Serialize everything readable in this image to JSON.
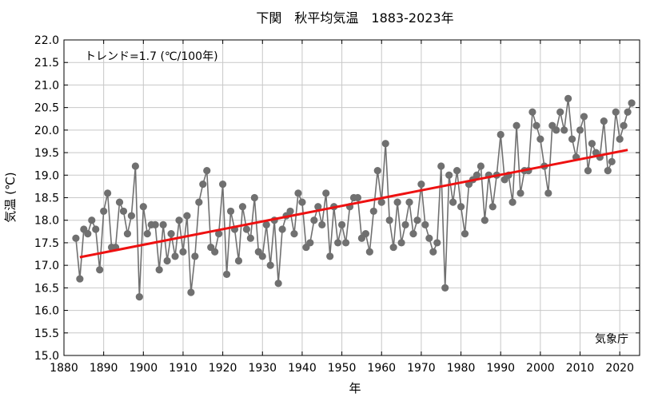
{
  "chart_data": {
    "type": "line",
    "title": "下関　秋平均気温　1883-2023年",
    "xlabel": "年",
    "ylabel": "気温 (℃)",
    "trend_label": "トレンド=1.7 (℃/100年)",
    "source_label": "気象庁",
    "xlim": [
      1880,
      2025
    ],
    "ylim": [
      15.0,
      22.0
    ],
    "x_ticks": [
      1880,
      1890,
      1900,
      1910,
      1920,
      1930,
      1940,
      1950,
      1960,
      1970,
      1980,
      1990,
      2000,
      2010,
      2020
    ],
    "x_tick_labels": [
      "1880",
      "1890",
      "1900",
      "1910",
      "1920",
      "1930",
      "1940",
      "1950",
      "1960",
      "1970",
      "1980",
      "1990",
      "2000",
      "2010",
      "2020"
    ],
    "y_ticks": [
      15.0,
      15.5,
      16.0,
      16.5,
      17.0,
      17.5,
      18.0,
      18.5,
      19.0,
      19.5,
      20.0,
      20.5,
      21.0,
      21.5,
      22.0
    ],
    "y_tick_labels": [
      "15.0",
      "15.5",
      "16.0",
      "16.5",
      "17.0",
      "17.5",
      "18.0",
      "18.5",
      "19.0",
      "19.5",
      "20.0",
      "20.5",
      "21.0",
      "21.5",
      "22.0"
    ],
    "grid": true,
    "colors": {
      "series": "#707070",
      "trend": "#ee1111",
      "grid": "#c8c8c8"
    },
    "series": [
      {
        "x": [
          1883,
          1884,
          1885,
          1886,
          1887,
          1888,
          1889,
          1890,
          1891,
          1892,
          1893,
          1894,
          1895,
          1896,
          1897,
          1898,
          1899,
          1900,
          1901,
          1902,
          1903,
          1904,
          1905,
          1906,
          1907,
          1908,
          1909,
          1910,
          1911,
          1912,
          1913,
          1914,
          1915,
          1916,
          1917,
          1918,
          1919,
          1920,
          1921,
          1922,
          1923,
          1924,
          1925,
          1926,
          1927,
          1928,
          1929,
          1930,
          1931,
          1932,
          1933,
          1934,
          1935,
          1936,
          1937,
          1938,
          1939,
          1940,
          1941,
          1942,
          1943,
          1944,
          1945,
          1946,
          1947,
          1948,
          1949,
          1950,
          1951,
          1952,
          1953,
          1954,
          1955,
          1956,
          1957,
          1958,
          1959,
          1960,
          1961,
          1962,
          1963,
          1964,
          1965,
          1966,
          1967,
          1968,
          1969,
          1970,
          1971,
          1972,
          1973,
          1974,
          1975,
          1976,
          1977,
          1978,
          1979,
          1980,
          1981,
          1982,
          1983,
          1984,
          1985,
          1986,
          1987,
          1988,
          1989,
          1990,
          1991,
          1992,
          1993,
          1994,
          1995,
          1996,
          1997,
          1998,
          1999,
          2000,
          2001,
          2002,
          2003,
          2004,
          2005,
          2006,
          2007,
          2008,
          2009,
          2010,
          2011,
          2012,
          2013,
          2014,
          2015,
          2016,
          2017,
          2018,
          2019,
          2020,
          2021,
          2022,
          2023
        ],
        "values": [
          17.6,
          16.7,
          17.8,
          17.7,
          18.0,
          17.8,
          16.9,
          18.2,
          18.6,
          17.4,
          17.4,
          18.4,
          18.2,
          17.7,
          18.1,
          19.2,
          16.3,
          18.3,
          17.7,
          17.9,
          17.9,
          16.9,
          17.9,
          17.1,
          17.7,
          17.2,
          18.0,
          17.3,
          18.1,
          16.4,
          17.2,
          18.4,
          18.8,
          19.1,
          17.4,
          17.3,
          17.7,
          18.8,
          16.8,
          18.2,
          17.8,
          17.1,
          18.3,
          17.8,
          17.6,
          18.5,
          17.3,
          17.2,
          17.9,
          17.0,
          18.0,
          16.6,
          17.8,
          18.1,
          18.2,
          17.7,
          18.6,
          18.4,
          17.4,
          17.5,
          18.0,
          18.3,
          17.9,
          18.6,
          17.2,
          18.3,
          17.5,
          17.9,
          17.5,
          18.3,
          18.5,
          18.5,
          17.6,
          17.7,
          17.3,
          18.2,
          19.1,
          18.4,
          19.7,
          18.0,
          17.4,
          18.4,
          17.5,
          17.9,
          18.4,
          17.7,
          18.0,
          18.8,
          17.9,
          17.6,
          17.3,
          17.5,
          19.2,
          16.5,
          19.0,
          18.4,
          19.1,
          18.3,
          17.7,
          18.8,
          18.9,
          19.0,
          19.2,
          18.0,
          19.0,
          18.3,
          19.0,
          19.9,
          18.9,
          19.0,
          18.4,
          20.1,
          18.6,
          19.1,
          19.1,
          20.4,
          20.1,
          19.8,
          19.2,
          18.6,
          20.1,
          20.0,
          20.4,
          20.0,
          20.7,
          19.8,
          19.4,
          20.0,
          20.3,
          19.1,
          19.7,
          19.5,
          19.4,
          20.2,
          19.1,
          19.3,
          20.4,
          19.8,
          20.1,
          20.4,
          20.6
        ]
      }
    ],
    "trend": {
      "x": [
        1884,
        2022
      ],
      "values": [
        17.18,
        19.56
      ]
    }
  }
}
